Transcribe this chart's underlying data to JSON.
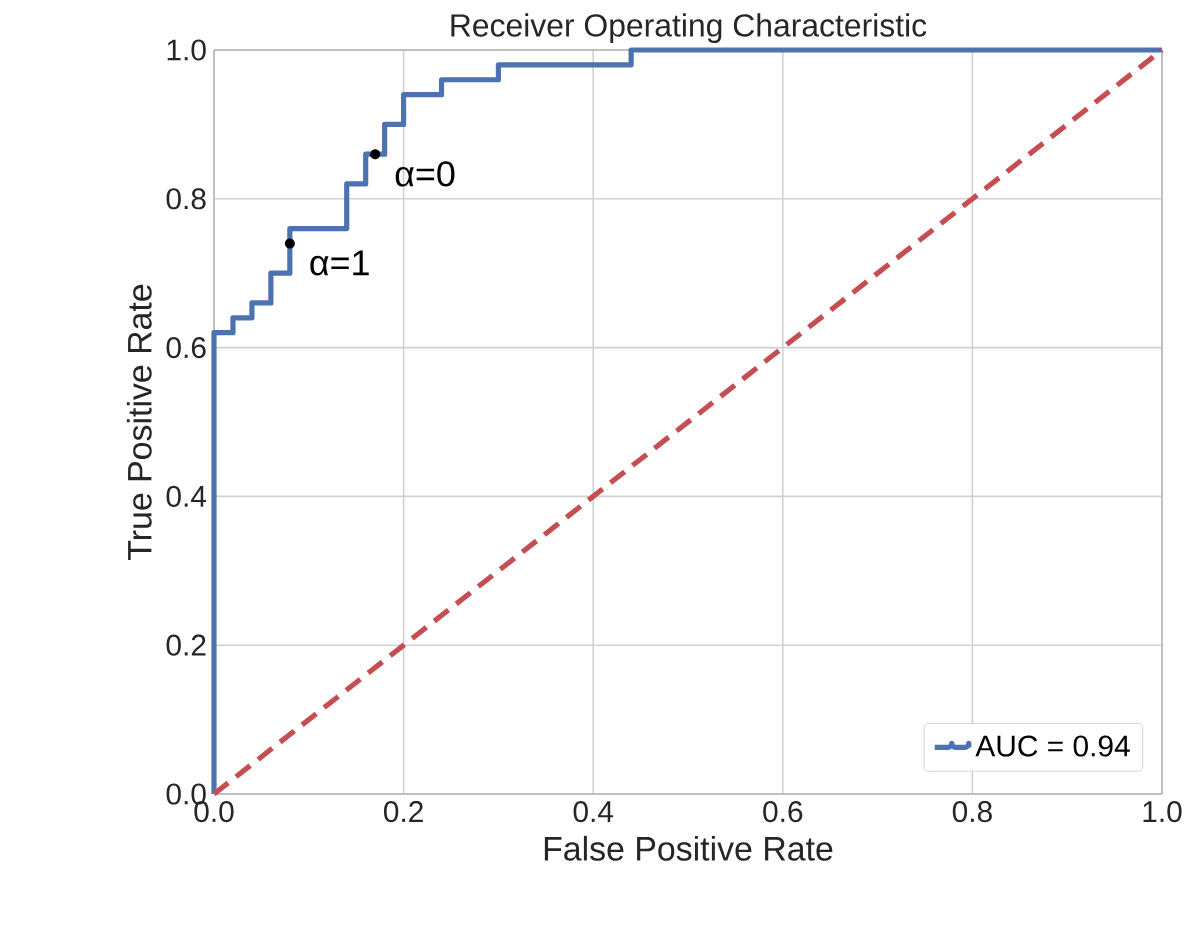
{
  "chart_data": {
    "type": "step",
    "title": "Receiver Operating Characteristic",
    "xlabel": "False Positive Rate",
    "ylabel": "True Positive Rate",
    "series": [
      {
        "name": "AUC = 0.94",
        "color": "#4c72b0",
        "x": [
          0,
          0,
          0.02,
          0.04,
          0.06,
          0.08,
          0.14,
          0.16,
          0.18,
          0.2,
          0.24,
          0.3,
          0.44,
          1
        ],
        "values": [
          0,
          0.62,
          0.64,
          0.66,
          0.7,
          0.76,
          0.82,
          0.86,
          0.9,
          0.94,
          0.96,
          0.98,
          1,
          1
        ]
      },
      {
        "type": "line",
        "color": "#c44e52",
        "line_style": "dashed",
        "x": [
          0,
          1
        ],
        "values": [
          0,
          1
        ]
      }
    ],
    "xlim": [
      0,
      1
    ],
    "ylim": [
      0,
      1
    ],
    "xticks": [
      {
        "value": 0,
        "label": "0.0"
      },
      {
        "value": 0.2,
        "label": "0.2"
      },
      {
        "value": 0.4,
        "label": "0.4"
      },
      {
        "value": 0.6,
        "label": "0.6"
      },
      {
        "value": 0.8,
        "label": "0.8"
      },
      {
        "value": 1,
        "label": "1.0"
      }
    ],
    "yticks": [
      {
        "value": 0,
        "label": "0.0"
      },
      {
        "value": 0.2,
        "label": "0.2"
      },
      {
        "value": 0.4,
        "label": "0.4"
      },
      {
        "value": 0.6,
        "label": "0.6"
      },
      {
        "value": 0.8,
        "label": "0.8"
      },
      {
        "value": 1,
        "label": "1.0"
      }
    ],
    "annotations": [
      {
        "text": "α=0",
        "x": 0.17,
        "y": 0.86
      },
      {
        "text": "α=1",
        "x": 0.08,
        "y": 0.74
      }
    ],
    "grid": true,
    "legend": "bottom right"
  }
}
